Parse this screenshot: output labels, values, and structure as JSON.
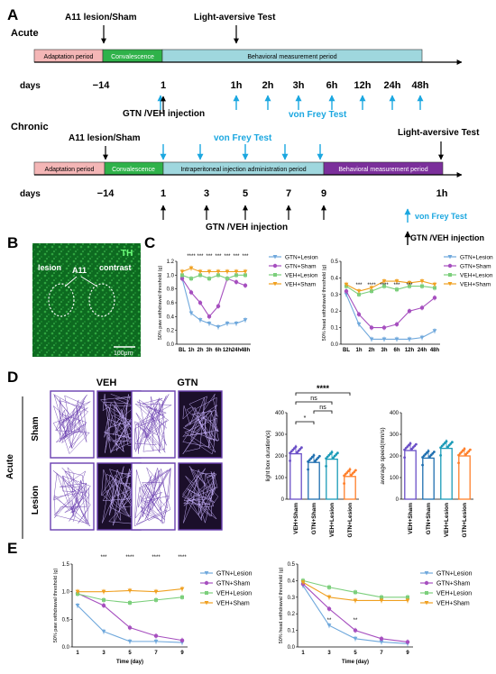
{
  "colors": {
    "adaptation": "#f4b6b6",
    "convalescence": "#2fb24a",
    "behavioral_meas": "#9fd7de",
    "behavioral_chronic": "#7b2f9b",
    "cyan": "#1ba7e0",
    "gtn_lesion": "#6fa8dc",
    "gtn_sham": "#a64fbf",
    "veh_lesion": "#7ccf7c",
    "veh_sham": "#f0a020",
    "track": "#6a3fb0",
    "bar_orange": "#ff7f2a"
  },
  "panelA": {
    "letter": "A",
    "acute": {
      "title": "Acute",
      "a11": "A11 lesion/Sham",
      "lat": "Light-aversive Test",
      "seg1": "Adaptation period",
      "seg2": "Convalescence",
      "seg3": "Behavioral measurement period",
      "days": "days",
      "ticks": [
        "−14",
        "1",
        "1h",
        "2h",
        "3h",
        "6h",
        "12h",
        "24h",
        "48h"
      ],
      "vft": "von Frey Test",
      "inj": "GTN /VEH injection"
    },
    "chronic": {
      "title": "Chronic",
      "a11": "A11 lesion/Sham",
      "lat": "Light-aversive Test",
      "seg1": "Adaptation period",
      "seg2": "Convalescence",
      "seg3": "Intraperitoneal injection administration period",
      "seg4": "Behavioral measurement period",
      "days": "days",
      "ticks": [
        "−14",
        "1",
        "3",
        "5",
        "7",
        "9",
        "1h"
      ],
      "vft": "von Frey Test",
      "inj": "GTN /VEH injection"
    },
    "legend": {
      "vft": "von Frey Test",
      "inj": "GTN /VEH injection"
    }
  },
  "panelB": {
    "letter": "B",
    "th": "TH",
    "lesion": "lesion",
    "a11": "A11",
    "contrast": "contrast",
    "scale": "100μm"
  },
  "panelC": {
    "letter": "C"
  },
  "panelD": {
    "letter": "D",
    "veh": "VEH",
    "gtn": "GTN",
    "acute": "Acute",
    "sham": "Sham",
    "lesion": "Lesion",
    "sig": "****",
    "ns": "ns",
    "star": "*"
  },
  "panelE": {
    "letter": "E"
  },
  "chart_data": [
    {
      "id": "C-left",
      "type": "line",
      "ylabel": "50% paw withdrawal threshold (g)",
      "categories": [
        "BL",
        "1h",
        "2h",
        "3h",
        "6h",
        "12h",
        "24h",
        "48h"
      ],
      "yticks": [
        "0.0",
        "0.2",
        "0.4",
        "0.6",
        "0.8",
        "1.0",
        "1.2"
      ],
      "ylim": [
        0,
        1.2
      ],
      "legend": [
        "GTN+Lesion",
        "GTN+Sham",
        "VEH+Lesion",
        "VEH+Sham"
      ],
      "series": [
        {
          "name": "GTN+Lesion",
          "values": [
            0.95,
            0.45,
            0.35,
            0.3,
            0.25,
            0.3,
            0.3,
            0.35
          ]
        },
        {
          "name": "GTN+Sham",
          "values": [
            0.95,
            0.75,
            0.6,
            0.4,
            0.55,
            0.95,
            0.9,
            0.85
          ]
        },
        {
          "name": "VEH+Lesion",
          "values": [
            1.0,
            0.95,
            1.0,
            0.95,
            1.0,
            0.95,
            1.0,
            1.0
          ]
        },
        {
          "name": "VEH+Sham",
          "values": [
            1.05,
            1.1,
            1.05,
            1.05,
            1.05,
            1.05,
            1.05,
            1.05
          ]
        }
      ],
      "annotations": [
        "****",
        "***",
        "***",
        "***",
        "***",
        "***",
        "***"
      ]
    },
    {
      "id": "C-right",
      "type": "line",
      "ylabel": "50% head withdrawal threshold (g)",
      "categories": [
        "BL",
        "1h",
        "2h",
        "3h",
        "6h",
        "12h",
        "24h",
        "48h"
      ],
      "yticks": [
        "0.0",
        "0.1",
        "0.2",
        "0.3",
        "0.4",
        "0.5"
      ],
      "ylim": [
        0,
        0.5
      ],
      "legend": [
        "GTN+Lesion",
        "GTN+Sham",
        "VEH+Lesion",
        "VEH+Sham"
      ],
      "series": [
        {
          "name": "GTN+Lesion",
          "values": [
            0.3,
            0.12,
            0.03,
            0.03,
            0.03,
            0.03,
            0.04,
            0.08
          ]
        },
        {
          "name": "GTN+Sham",
          "values": [
            0.32,
            0.18,
            0.1,
            0.1,
            0.12,
            0.2,
            0.22,
            0.28
          ]
        },
        {
          "name": "VEH+Lesion",
          "values": [
            0.35,
            0.3,
            0.32,
            0.35,
            0.33,
            0.35,
            0.35,
            0.34
          ]
        },
        {
          "name": "VEH+Sham",
          "values": [
            0.36,
            0.32,
            0.34,
            0.38,
            0.38,
            0.37,
            0.38,
            0.36
          ]
        }
      ],
      "annotations": [
        "***",
        "****",
        "****",
        "***",
        "***"
      ]
    },
    {
      "id": "D-light",
      "type": "bar",
      "ylabel": "light box duration(s)",
      "categories": [
        "VEH+Sham",
        "GTN+Sham",
        "VEH+Lesion",
        "GTN+Lesion"
      ],
      "values": [
        210,
        170,
        185,
        105
      ],
      "yticks": [
        "0",
        "100",
        "200",
        "300",
        "400"
      ],
      "ylim": [
        0,
        400
      ]
    },
    {
      "id": "D-speed",
      "type": "bar",
      "ylabel": "average speed(mm/s)",
      "categories": [
        "VEH+Sham",
        "GTN+Sham",
        "VEH+Lesion",
        "GTN+Lesion"
      ],
      "values": [
        225,
        190,
        235,
        200
      ],
      "yticks": [
        "0",
        "100",
        "200",
        "300",
        "400"
      ],
      "ylim": [
        0,
        400
      ]
    },
    {
      "id": "E-left",
      "type": "line",
      "xlabel": "Time (day)",
      "ylabel": "50% paw withdrawal threshold (g)",
      "categories": [
        "1",
        "3",
        "5",
        "7",
        "9"
      ],
      "yticks": [
        "0.0",
        "0.5",
        "1.0",
        "1.5"
      ],
      "ylim": [
        0,
        1.5
      ],
      "legend": [
        "GTN+Lesion",
        "GTN+Sham",
        "VEH+Lesion",
        "VEH+Sham"
      ],
      "series": [
        {
          "name": "GTN+Lesion",
          "values": [
            0.75,
            0.28,
            0.1,
            0.1,
            0.08
          ]
        },
        {
          "name": "GTN+Sham",
          "values": [
            0.97,
            0.75,
            0.35,
            0.2,
            0.12
          ]
        },
        {
          "name": "VEH+Lesion",
          "values": [
            0.96,
            0.85,
            0.8,
            0.85,
            0.9
          ]
        },
        {
          "name": "VEH+Sham",
          "values": [
            1.0,
            1.0,
            1.02,
            1.0,
            1.05
          ]
        }
      ],
      "annotations": [
        "***",
        "****",
        "****",
        "****"
      ]
    },
    {
      "id": "E-right",
      "type": "line",
      "xlabel": "Time (day)",
      "ylabel": "50% head withdrawal threshold (g)",
      "categories": [
        "1",
        "3",
        "5",
        "7",
        "9"
      ],
      "yticks": [
        "0.0",
        "0.1",
        "0.2",
        "0.3",
        "0.4",
        "0.5"
      ],
      "ylim": [
        0,
        0.5
      ],
      "legend": [
        "GTN+Lesion",
        "GTN+Sham",
        "VEH+Lesion",
        "VEH+Sham"
      ],
      "series": [
        {
          "name": "GTN+Lesion",
          "values": [
            0.37,
            0.13,
            0.05,
            0.03,
            0.02
          ]
        },
        {
          "name": "GTN+Sham",
          "values": [
            0.38,
            0.23,
            0.1,
            0.05,
            0.03
          ]
        },
        {
          "name": "VEH+Lesion",
          "values": [
            0.4,
            0.36,
            0.33,
            0.3,
            0.3
          ]
        },
        {
          "name": "VEH+Sham",
          "values": [
            0.39,
            0.3,
            0.28,
            0.28,
            0.28
          ]
        }
      ],
      "annotations": [
        "**",
        "**"
      ]
    }
  ]
}
